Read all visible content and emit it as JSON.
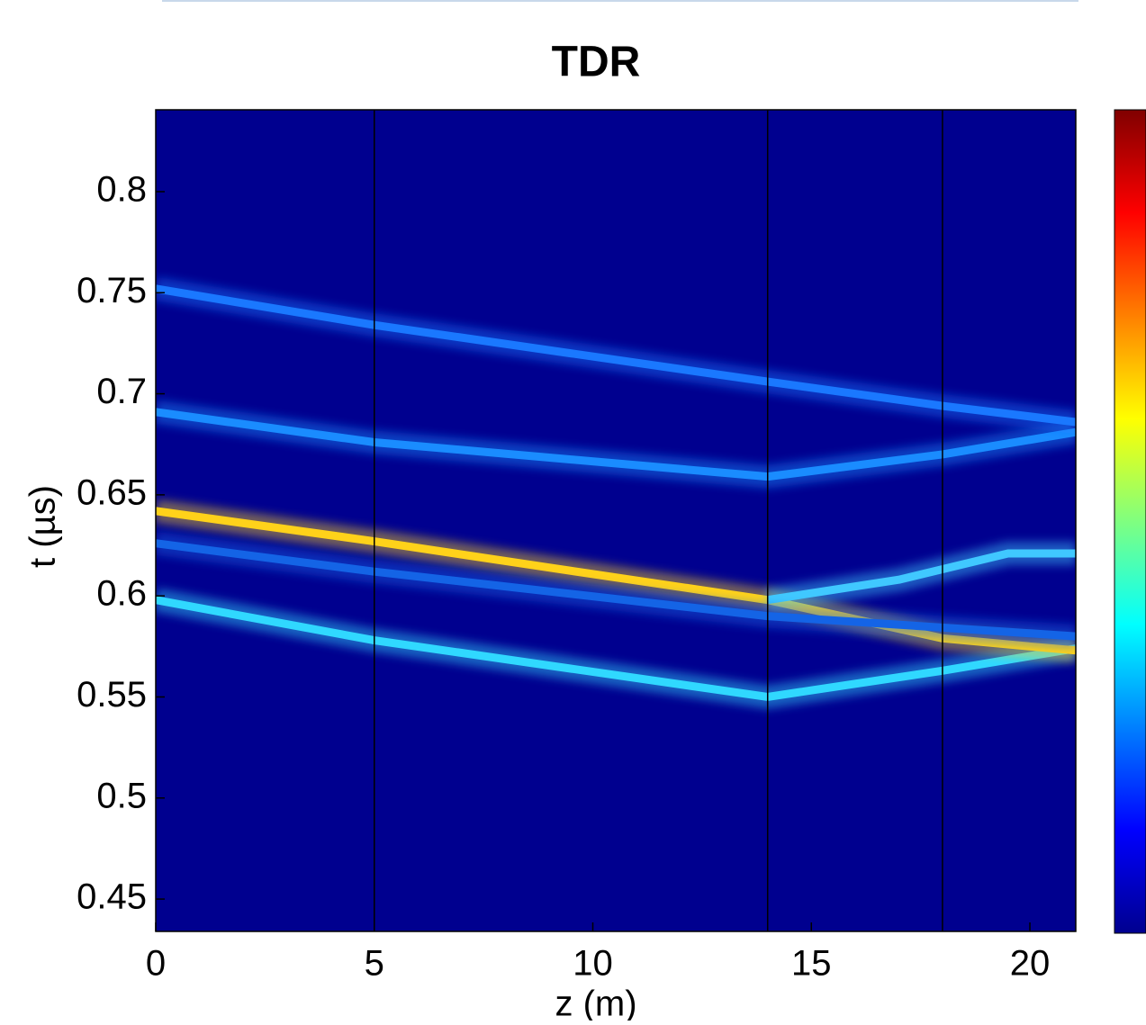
{
  "chart_data": {
    "type": "heatmap-ridges",
    "title": "TDR",
    "x_label": "z (m)",
    "y_label": "t (µs)",
    "background": "#00008f",
    "xlim": [
      0,
      21.05
    ],
    "ylim": [
      0.434,
      0.8405
    ],
    "xticks": [
      0,
      5,
      10,
      15,
      20
    ],
    "yticks": [
      0.45,
      0.5,
      0.55,
      0.6,
      0.65,
      0.7,
      0.75,
      0.8
    ],
    "vlines": [
      5,
      14,
      18
    ],
    "series": [
      {
        "color": "#30d8ff",
        "x": [
          0,
          5,
          14,
          18,
          21.05
        ],
        "values": [
          0.598,
          0.578,
          0.55,
          0.563,
          0.574
        ]
      },
      {
        "color": "#ffd21a",
        "x": [
          0,
          5,
          9,
          14,
          18,
          20,
          21.05
        ],
        "values": [
          0.642,
          0.627,
          0.614,
          0.598,
          0.579,
          0.575,
          0.573
        ]
      },
      {
        "color": "#40c8ff",
        "x": [
          14,
          17,
          19.5,
          21.05
        ],
        "values": [
          0.598,
          0.608,
          0.621,
          0.621
        ]
      },
      {
        "color": "#1a8cff",
        "x": [
          0,
          5,
          14,
          18,
          21.05
        ],
        "values": [
          0.691,
          0.676,
          0.659,
          0.67,
          0.681
        ]
      },
      {
        "color": "#1a78ff",
        "x": [
          0,
          5,
          14,
          18,
          21.05
        ],
        "values": [
          0.752,
          0.734,
          0.706,
          0.694,
          0.686
        ]
      },
      {
        "color": "#1464e6",
        "x": [
          0,
          5,
          14,
          21.05
        ],
        "values": [
          0.626,
          0.612,
          0.59,
          0.58
        ]
      }
    ]
  }
}
